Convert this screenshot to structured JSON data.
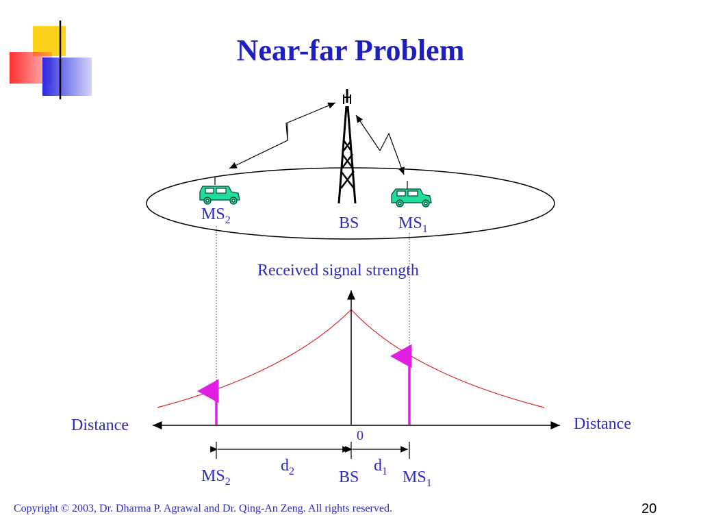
{
  "slide": {
    "title": "Near-far Problem",
    "page_number": "20",
    "copyright": "Copyright © 2003, Dr. Dharma P. Agrawal and Dr. Qing-An Zeng. All rights reserved."
  },
  "top": {
    "ms2_main": "MS",
    "ms2_sub": "2",
    "bs": "BS",
    "ms1_main": "MS",
    "ms1_sub": "1"
  },
  "graph": {
    "y_axis_label": "Received signal strength",
    "left_axis_label": "Distance",
    "right_axis_label": "Distance",
    "origin": "0",
    "d2_main": "d",
    "d2_sub": "2",
    "d1_main": "d",
    "d1_sub": "1",
    "ms2_main": "MS",
    "ms2_sub": "2",
    "bs": "BS",
    "ms1_main": "MS",
    "ms1_sub": "1"
  },
  "colors": {
    "title": "#1f1fbf",
    "label": "#2b2bbf",
    "curve": "#e02020",
    "signal_arrow": "#e020e0",
    "vehicle": "#22dd99",
    "deco_yellow": "#ffd21e",
    "deco_red": "#ff3030",
    "deco_blue": "#2a2ae0"
  }
}
